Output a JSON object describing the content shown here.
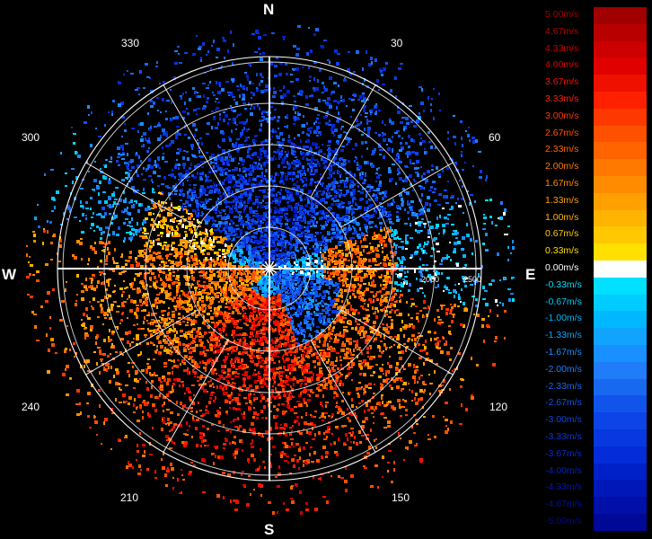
{
  "compass": {
    "north": "N",
    "south": "S",
    "east": "E",
    "west": "W"
  },
  "bearings": {
    "b30": "30",
    "b60": "60",
    "b120": "120",
    "b150": "150",
    "b210": "210",
    "b240": "240",
    "b300": "300",
    "b330": "330"
  },
  "range_labels": {
    "r2000": "2000",
    "r2500": "2500"
  },
  "legend": [
    {
      "label": "5.00m/s",
      "color": "#a00000"
    },
    {
      "label": "4.67m/s",
      "color": "#b80000"
    },
    {
      "label": "4.33m/s",
      "color": "#cc0000"
    },
    {
      "label": "4.00m/s",
      "color": "#e00000"
    },
    {
      "label": "3.67m/s",
      "color": "#f01000"
    },
    {
      "label": "3.33m/s",
      "color": "#ff2000"
    },
    {
      "label": "3.00m/s",
      "color": "#ff3800"
    },
    {
      "label": "2.67m/s",
      "color": "#ff5000"
    },
    {
      "label": "2.33m/s",
      "color": "#ff6400"
    },
    {
      "label": "2.00m/s",
      "color": "#ff7800"
    },
    {
      "label": "1.67m/s",
      "color": "#ff8c00"
    },
    {
      "label": "1.33m/s",
      "color": "#ffa000"
    },
    {
      "label": "1.00m/s",
      "color": "#ffb400"
    },
    {
      "label": "0.67m/s",
      "color": "#ffc800"
    },
    {
      "label": "0.33m/s",
      "color": "#ffe000"
    },
    {
      "label": "0.00m/s",
      "color": "#ffffff"
    },
    {
      "label": "-0.33m/s",
      "color": "#00e0ff"
    },
    {
      "label": "-0.67m/s",
      "color": "#00ccff"
    },
    {
      "label": "-1.00m/s",
      "color": "#00b8ff"
    },
    {
      "label": "-1.33m/s",
      "color": "#10a4ff"
    },
    {
      "label": "-1.67m/s",
      "color": "#1890ff"
    },
    {
      "label": "-2.00m/s",
      "color": "#207cf8"
    },
    {
      "label": "-2.33m/s",
      "color": "#1868f0"
    },
    {
      "label": "-2.67m/s",
      "color": "#1054ec"
    },
    {
      "label": "-3.00m/s",
      "color": "#0c44e8"
    },
    {
      "label": "-3.33m/s",
      "color": "#0838e0"
    },
    {
      "label": "-3.67m/s",
      "color": "#042cd8"
    },
    {
      "label": "-4.00m/s",
      "color": "#0020c8"
    },
    {
      "label": "-4.33m/s",
      "color": "#0018b8"
    },
    {
      "label": "-4.67m/s",
      "color": "#0010a8"
    },
    {
      "label": "-5.00m/s",
      "color": "#000898"
    }
  ]
}
